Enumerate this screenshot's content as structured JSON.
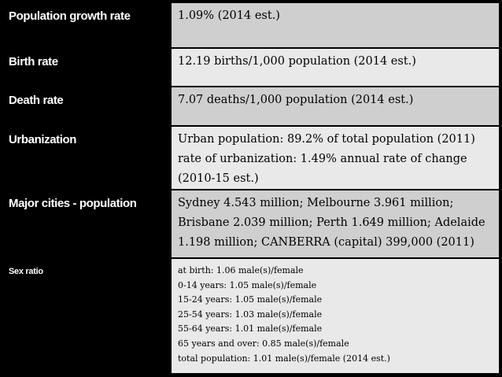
{
  "rows": [
    {
      "label": "Population growth rate",
      "lines": [
        "1.09% (2014 est.)"
      ]
    },
    {
      "label": "Birth rate",
      "lines": [
        "12.19 births/1,000 population (2014 est.)"
      ]
    },
    {
      "label": "Death rate",
      "lines": [
        "7.07 deaths/1,000 population (2014 est.)"
      ]
    },
    {
      "label": "Urbanization",
      "lines": [
        "Urban population: 89.2% of total population (2011)",
        "rate of urbanization: 1.49% annual rate of change",
        "(2010-15 est.)"
      ]
    },
    {
      "label": "Major cities - population",
      "lines": [
        "Sydney 4.543 million; Melbourne 3.961 million;",
        "Brisbane 2.039 million; Perth 1.649 million; Adelaide",
        "1.198 million; CANBERRA (capital) 399,000 (2011)"
      ]
    },
    {
      "label": "Sex ratio",
      "lines": [
        "at birth: 1.06 male(s)/female",
        "0-14 years: 1.05 male(s)/female",
        "15-24 years: 1.05 male(s)/female",
        "25-54 years: 1.03 male(s)/female",
        "55-64 years: 1.01 male(s)/female",
        "65 years and over: 0.85 male(s)/female",
        "total population: 1.01 male(s)/female (2014 est.)"
      ]
    }
  ],
  "colors": {
    "background": "#000000",
    "label_text": "#ffffff",
    "value_dark": "#cfcfcf",
    "value_light": "#e9e9e9"
  }
}
